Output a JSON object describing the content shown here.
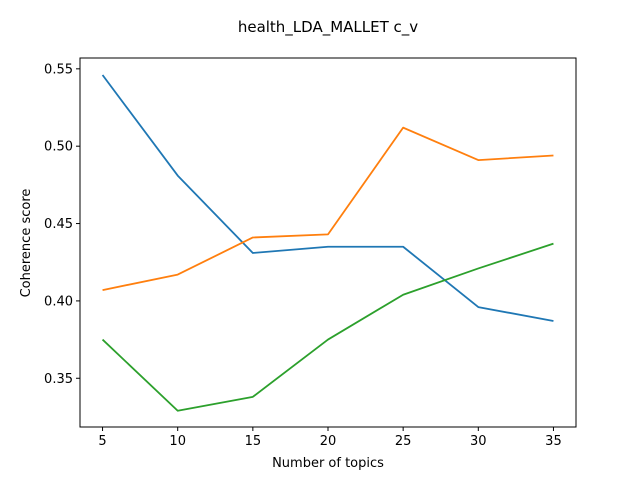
{
  "chart_data": {
    "type": "line",
    "title": "health_LDA_MALLET c_v",
    "xlabel": "Number of topics",
    "ylabel": "Coherence score",
    "x": [
      5,
      10,
      15,
      20,
      25,
      30,
      35
    ],
    "xticks": [
      "5",
      "10",
      "15",
      "20",
      "25",
      "30",
      "35"
    ],
    "yticks": [
      "0.35",
      "0.40",
      "0.45",
      "0.50",
      "0.55"
    ],
    "xlim": [
      3.5,
      36.5
    ],
    "ylim": [
      0.3185,
      0.557
    ],
    "grid": false,
    "series": [
      {
        "color": "#1f77b4",
        "values": [
          0.546,
          0.481,
          0.431,
          0.435,
          0.435,
          0.396,
          0.387
        ]
      },
      {
        "color": "#ff7f0e",
        "values": [
          0.407,
          0.417,
          0.441,
          0.443,
          0.512,
          0.491,
          0.494
        ]
      },
      {
        "color": "#2ca02c",
        "values": [
          0.375,
          0.329,
          0.338,
          0.375,
          0.404,
          0.421,
          0.437
        ]
      }
    ]
  }
}
